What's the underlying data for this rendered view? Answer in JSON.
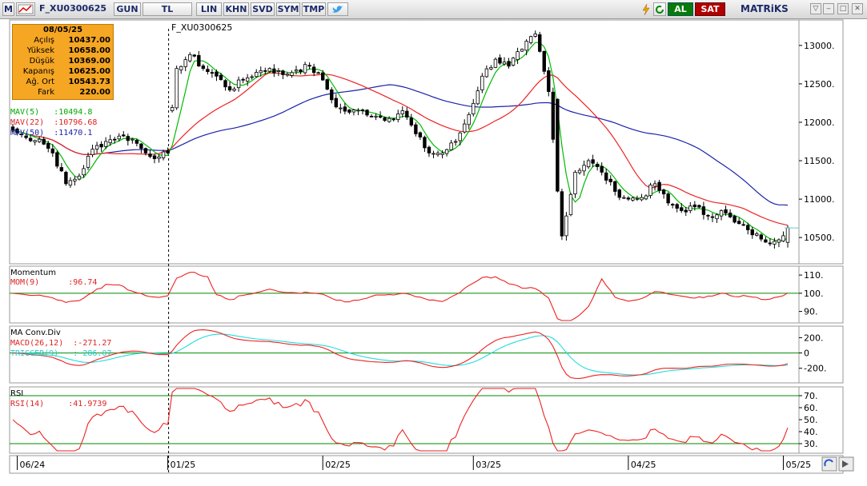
{
  "toolbar": {
    "app_icon": "M",
    "symbol": "F_XU0300625",
    "period": "GUN",
    "currency": "TL",
    "buttons": [
      "LIN",
      "KHN",
      "SVD",
      "SYM",
      "TMP"
    ],
    "buy_label": "AL",
    "sell_label": "SAT",
    "brand": "MATRiKS",
    "icons": [
      "chart-type-icon",
      "lightning-icon",
      "refresh-icon",
      "twitter-icon",
      "dropdown-icon",
      "minimize-icon",
      "maximize-icon",
      "close-icon"
    ]
  },
  "colors": {
    "mav5": "#00bb00",
    "mav22": "#ee2222",
    "mav50": "#1a22aa",
    "momentum": "#ee2222",
    "macd": "#ee2222",
    "trigger": "#22dddd",
    "rsi": "#ee2222",
    "refline": "#008800",
    "buy": "#008800",
    "sell": "#cc0000",
    "ohlc_bg": "#f5a623"
  },
  "ohlc_box": {
    "date": "08/05/25",
    "rows": [
      {
        "label": "Açılış",
        "value": "10437.00"
      },
      {
        "label": "Yüksek",
        "value": "10658.00"
      },
      {
        "label": "Düşük",
        "value": "10369.00"
      },
      {
        "label": "Kapanış",
        "value": "10625.00"
      },
      {
        "label": "Ağ. Ort",
        "value": "10543.73"
      },
      {
        "label": "Fark",
        "value": "220.00"
      }
    ]
  },
  "chart_data": [
    {
      "type": "candlestick",
      "title": "F_XU0300625",
      "ylim": [
        10200,
        13300
      ],
      "yticks": [
        13000,
        12500,
        12000,
        11500,
        11000,
        10500
      ],
      "ytick_labels": [
        "13000.",
        "12500.",
        "12000.",
        "11500.",
        "11000.",
        "10500."
      ],
      "x_ticks": [
        "06/24",
        "01/25",
        "02/25",
        "03/25",
        "04/25",
        "05/25"
      ],
      "x_tick_index": [
        1,
        35,
        70,
        104,
        139,
        174
      ],
      "divider_index": 35,
      "last_price": 10625,
      "anchors": {
        "idx": [
          0,
          3,
          6,
          9,
          12,
          15,
          18,
          21,
          24,
          27,
          30,
          33,
          35,
          37,
          40,
          43,
          46,
          49,
          52,
          55,
          58,
          61,
          64,
          67,
          70,
          73,
          76,
          79,
          82,
          85,
          88,
          91,
          94,
          97,
          100,
          103,
          106,
          109,
          112,
          115,
          118,
          121,
          124,
          127,
          130,
          133,
          136,
          139,
          142,
          145,
          148,
          151,
          154,
          157,
          160,
          163,
          166,
          169,
          172,
          175
        ],
        "close": [
          11900,
          11800,
          11780,
          11600,
          11200,
          11300,
          11650,
          11750,
          11820,
          11780,
          11600,
          11550,
          11600,
          12700,
          12880,
          12700,
          12600,
          12420,
          12550,
          12650,
          12700,
          12620,
          12680,
          12730,
          12550,
          12200,
          12130,
          12150,
          12080,
          12050,
          12150,
          11850,
          11600,
          11600,
          11750,
          12100,
          12600,
          12820,
          12730,
          12950,
          13150,
          12400,
          10520,
          11350,
          11500,
          11350,
          11100,
          11000,
          11020,
          11200,
          10950,
          10850,
          10900,
          10780,
          10850,
          10700,
          10600,
          10480,
          10450,
          10625
        ]
      },
      "indicators": [
        {
          "name": "MAV(5)",
          "value": "10494.8",
          "period": 5
        },
        {
          "name": "MAV(22)",
          "value": "10796.68",
          "period": 22
        },
        {
          "name": "MAV(50)",
          "value": "11470.1",
          "period": 50
        }
      ]
    },
    {
      "type": "line",
      "title": "Momentum",
      "series_name": "MOM(9)",
      "series_value": "96.74",
      "ylim": [
        85,
        114
      ],
      "yticks": [
        110,
        100,
        90
      ],
      "ytick_labels": [
        "110.",
        "100.",
        "90."
      ],
      "refline": 100
    },
    {
      "type": "line",
      "title": "MA Conv.Div",
      "series": [
        {
          "name": "MACD(26,12)",
          "value": "-271.27"
        },
        {
          "name": "TRIGGER(9)",
          "value": "-286.07"
        }
      ],
      "ylim": [
        -360,
        330
      ],
      "yticks": [
        200,
        0,
        -200
      ],
      "ytick_labels": [
        "200.",
        "0",
        "-200."
      ],
      "refline": 0
    },
    {
      "type": "line",
      "title": "RSI",
      "series_name": "RSI(14)",
      "series_value": "41.9739",
      "ylim": [
        24,
        76
      ],
      "yticks": [
        70,
        60,
        50,
        40,
        30
      ],
      "ytick_labels": [
        "70.",
        "60.",
        "50.",
        "40.",
        "30."
      ],
      "reflines": [
        70,
        30
      ]
    }
  ]
}
